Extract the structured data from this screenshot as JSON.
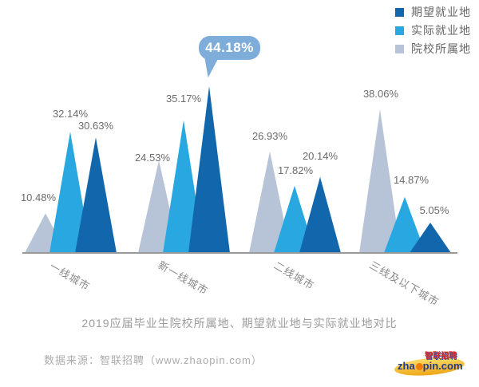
{
  "legend": {
    "items": [
      {
        "label": "期望就业地",
        "color": "#1166ac"
      },
      {
        "label": "实际就业地",
        "color": "#29a7e0"
      },
      {
        "label": "院校所属地",
        "color": "#b7c3d7"
      }
    ]
  },
  "chart_data": {
    "type": "bar",
    "style": "triangle-peaks",
    "categories": [
      "一线城市",
      "新一线城市",
      "二线城市",
      "三线及以下城市"
    ],
    "series": [
      {
        "name": "院校所属地",
        "color": "#b7c3d7",
        "values": [
          10.48,
          24.53,
          26.93,
          38.06
        ]
      },
      {
        "name": "实际就业地",
        "color": "#29a7e0",
        "values": [
          32.14,
          35.17,
          17.82,
          14.87
        ]
      },
      {
        "name": "期望就业地",
        "color": "#1166ac",
        "values": [
          30.63,
          44.18,
          20.14,
          5.05
        ]
      }
    ],
    "value_suffix": "%",
    "highlight": {
      "series": "期望就业地",
      "category": "新一线城市",
      "value": "44.18%"
    },
    "title": "2019应届毕业生院校所属地、期望就业地与实际就业地对比",
    "ylim": [
      0,
      50
    ],
    "grid": false,
    "legend_position": "top-right"
  },
  "callout": {
    "label": "44.18%"
  },
  "title": "2019应届毕业生院校所属地、期望就业地与实际就业地对比",
  "source": "数据来源：智联招聘（www.zhaopin.com）",
  "logo": {
    "cn": "智联招聘",
    "en_left": "zha",
    "en_right": "pin.com"
  }
}
